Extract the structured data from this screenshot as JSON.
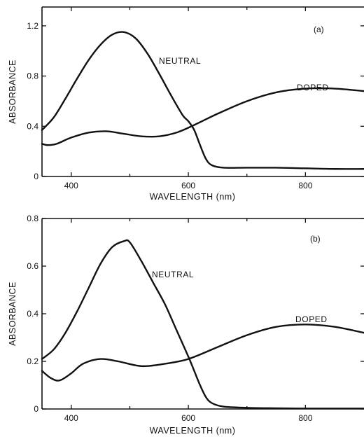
{
  "chart_data": [
    {
      "type": "line",
      "panel_label": "(a)",
      "xlabel": "WAVELENGTH (nm)",
      "ylabel": "ABSORBANCE",
      "xlim": [
        350,
        900
      ],
      "ylim": [
        0,
        1.35
      ],
      "x_ticks": [
        400,
        600,
        800
      ],
      "x_tick_labels": [
        "400",
        "600",
        "800"
      ],
      "y_ticks": [
        0,
        0.4,
        0.8,
        1.2
      ],
      "y_tick_labels": [
        "0",
        "0.4",
        "0.8",
        "1.2"
      ],
      "series": [
        {
          "name": "NEUTRAL",
          "x": [
            350,
            370,
            390,
            410,
            430,
            450,
            470,
            490,
            510,
            530,
            550,
            570,
            590,
            600,
            610,
            620,
            630,
            640,
            660,
            700,
            750,
            800,
            850,
            900
          ],
          "y": [
            0.37,
            0.47,
            0.62,
            0.78,
            0.93,
            1.05,
            1.13,
            1.15,
            1.1,
            0.98,
            0.82,
            0.65,
            0.49,
            0.44,
            0.37,
            0.25,
            0.14,
            0.09,
            0.07,
            0.07,
            0.07,
            0.065,
            0.06,
            0.06
          ]
        },
        {
          "name": "DOPED",
          "x": [
            350,
            360,
            375,
            400,
            430,
            460,
            490,
            520,
            550,
            580,
            610,
            650,
            700,
            750,
            800,
            850,
            900
          ],
          "y": [
            0.26,
            0.25,
            0.26,
            0.31,
            0.35,
            0.36,
            0.34,
            0.32,
            0.32,
            0.35,
            0.41,
            0.5,
            0.6,
            0.67,
            0.7,
            0.7,
            0.68
          ]
        }
      ]
    },
    {
      "type": "line",
      "panel_label": "(b)",
      "xlabel": "WAVELENGTH (nm)",
      "ylabel": "ABSORBANCE",
      "xlim": [
        350,
        900
      ],
      "ylim": [
        0,
        0.8
      ],
      "x_ticks": [
        400,
        600,
        800
      ],
      "x_tick_labels": [
        "400",
        "600",
        "800"
      ],
      "y_ticks": [
        0,
        0.2,
        0.4,
        0.6,
        0.8
      ],
      "y_tick_labels": [
        "0",
        "0.2",
        "0.4",
        "0.6",
        "0.8"
      ],
      "series": [
        {
          "name": "NEUTRAL",
          "x": [
            350,
            370,
            390,
            410,
            430,
            450,
            470,
            490,
            500,
            520,
            540,
            560,
            580,
            600,
            610,
            620,
            630,
            640,
            660,
            700,
            750,
            800,
            850,
            900
          ],
          "y": [
            0.21,
            0.25,
            0.32,
            0.41,
            0.51,
            0.61,
            0.68,
            0.705,
            0.7,
            0.62,
            0.53,
            0.44,
            0.33,
            0.22,
            0.16,
            0.1,
            0.05,
            0.025,
            0.01,
            0.005,
            0.003,
            0.002,
            0.002,
            0.002
          ]
        },
        {
          "name": "DOPED",
          "x": [
            350,
            365,
            380,
            400,
            420,
            450,
            480,
            520,
            560,
            600,
            650,
            700,
            750,
            800,
            850,
            900
          ],
          "y": [
            0.16,
            0.13,
            0.12,
            0.15,
            0.19,
            0.21,
            0.2,
            0.18,
            0.19,
            0.21,
            0.26,
            0.31,
            0.345,
            0.355,
            0.345,
            0.32
          ]
        }
      ]
    }
  ]
}
